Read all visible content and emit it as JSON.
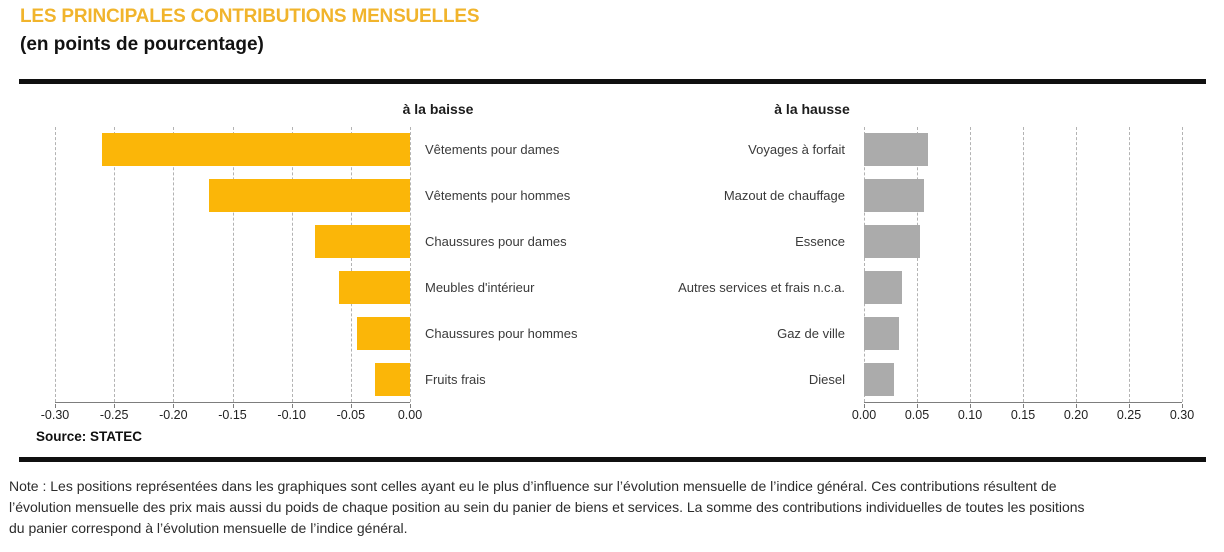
{
  "header": {
    "title": "LES PRINCIPALES CONTRIBUTIONS MENSUELLES",
    "subtitle": "(en points de pourcentage)"
  },
  "source_label": "Source: STATEC",
  "note": {
    "lines": [
      "Note : Les positions représentées dans les graphiques sont celles ayant eu le plus d’influence sur l’évolution mensuelle de l’indice général. Ces contributions résultent de",
      "l’évolution mensuelle des prix mais aussi du poids de chaque position au sein du panier de biens et services. La somme des contributions individuelles de toutes les positions",
      "du panier correspond à l’évolution mensuelle de l’indice général."
    ]
  },
  "colors": {
    "title_gold": "#F1B42C",
    "bar_down_yellow": "#FBB608",
    "bar_up_gray": "#ABABAB",
    "rule_black": "#101010",
    "grid_gray": "#B3B3B3"
  },
  "chart_data": [
    {
      "type": "bar",
      "orientation": "horizontal",
      "title": "à la baisse",
      "categories": [
        "Vêtements pour dames",
        "Vêtements pour hommes",
        "Chaussures pour dames",
        "Meubles d'intérieur",
        "Chaussures pour hommes",
        "Fruits frais"
      ],
      "values": [
        -0.26,
        -0.17,
        -0.08,
        -0.06,
        -0.045,
        -0.03
      ],
      "xlim": [
        -0.3,
        0.0
      ],
      "ticks": [
        "-0.30",
        "-0.25",
        "-0.20",
        "-0.15",
        "-0.10",
        "-0.05",
        "0.00"
      ],
      "bar_color": "#FBB608",
      "grid": true,
      "legend": "none"
    },
    {
      "type": "bar",
      "orientation": "horizontal",
      "title": "à la hausse",
      "categories": [
        "Voyages à forfait",
        "Mazout de chauffage",
        "Essence",
        "Autres services et frais n.c.a.",
        "Gaz de ville",
        "Diesel"
      ],
      "values": [
        0.06,
        0.057,
        0.053,
        0.036,
        0.033,
        0.028
      ],
      "xlim": [
        0.0,
        0.3
      ],
      "ticks": [
        "0.00",
        "0.05",
        "0.10",
        "0.15",
        "0.20",
        "0.25",
        "0.30"
      ],
      "bar_color": "#ABABAB",
      "grid": true,
      "legend": "none"
    }
  ]
}
